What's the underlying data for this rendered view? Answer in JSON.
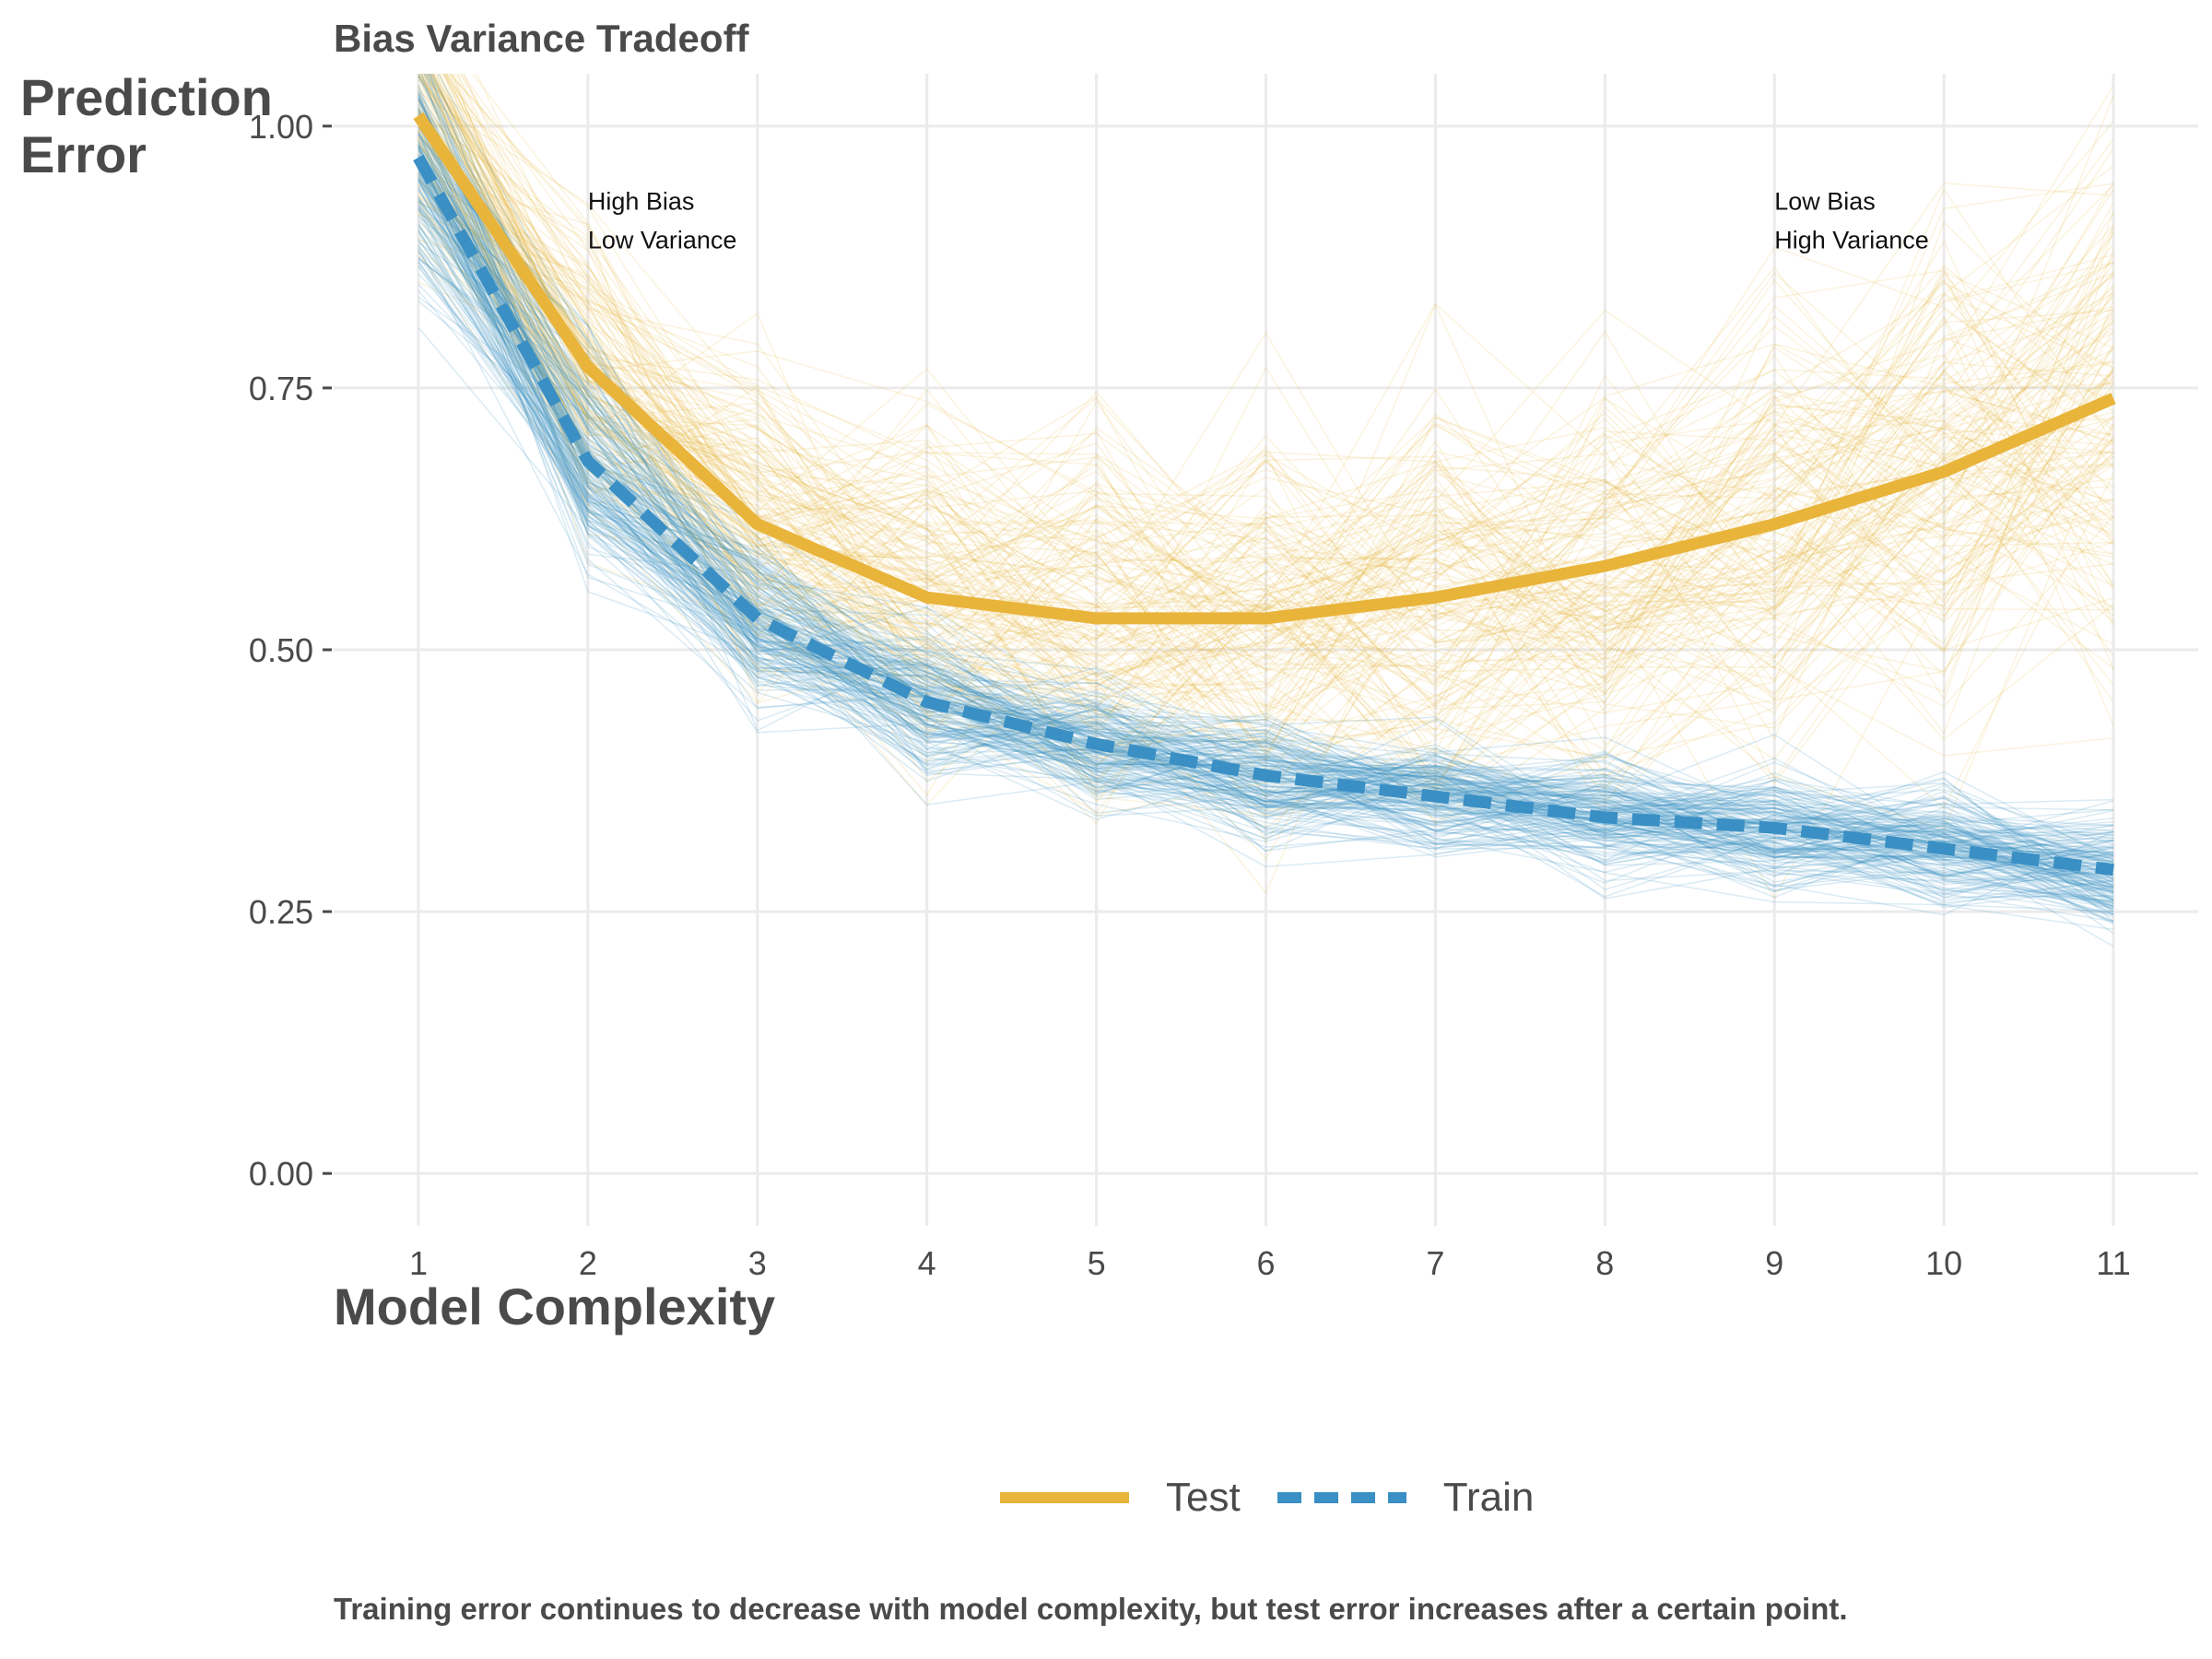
{
  "chart_data": {
    "type": "line",
    "title": "Bias Variance Tradeoff",
    "ylabel": "Prediction\nError",
    "xlabel": "Model Complexity",
    "caption": "Training error continues to decrease with model complexity, but test error increases after a certain point.",
    "x": [
      1,
      2,
      3,
      4,
      5,
      6,
      7,
      8,
      9,
      10,
      11
    ],
    "xlim": [
      0.5,
      11.5
    ],
    "ylim": [
      -0.05,
      1.05
    ],
    "yticks": [
      "0.00",
      "0.25",
      "0.50",
      "0.75",
      "1.00"
    ],
    "ytick_values": [
      0,
      0.25,
      0.5,
      0.75,
      1.0
    ],
    "grid": true,
    "legend_position": "bottom",
    "series": [
      {
        "name": "Test",
        "color": "#E9B43A",
        "dash": "solid",
        "values": [
          1.01,
          0.77,
          0.62,
          0.55,
          0.53,
          0.53,
          0.55,
          0.58,
          0.62,
          0.67,
          0.74
        ]
      },
      {
        "name": "Train",
        "color": "#3A8FC4",
        "dash": "dashed",
        "values": [
          0.97,
          0.68,
          0.53,
          0.45,
          0.41,
          0.38,
          0.36,
          0.34,
          0.33,
          0.31,
          0.29
        ]
      }
    ],
    "annotations": [
      {
        "x": 2,
        "y": 0.92,
        "lines": [
          "High Bias",
          "Low Variance"
        ]
      },
      {
        "x": 9,
        "y": 0.92,
        "lines": [
          "Low Bias",
          "High Variance"
        ]
      }
    ]
  }
}
